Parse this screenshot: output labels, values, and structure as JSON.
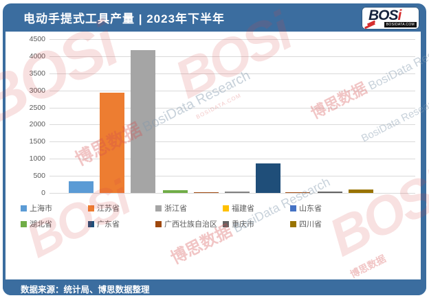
{
  "header": {
    "title": "电动手提式工具产量 | 2023年下半年"
  },
  "logo": {
    "main": "BOS",
    "accent": "i",
    "site": "BOSIDATA.COM"
  },
  "footer": {
    "source": "数据来源：统计局、博思数据整理"
  },
  "watermark": {
    "logo": "BOSi",
    "cn": "博思数据",
    "en": "BosiData Research",
    "site": "BOSIDATA.COM"
  },
  "colors": {
    "frame_blue": "#3b6d9f",
    "grid": "#d9d9d9",
    "axis_text": "#595959",
    "watermark_red": "#d9534f"
  },
  "chart_data": {
    "type": "bar",
    "title": "电动手提式工具产量 | 2023年下半年",
    "categories": [
      "上海市",
      "江苏省",
      "浙江省",
      "福建省",
      "山东省",
      "湖北省",
      "广东省",
      "广西壮族自治区",
      "重庆市",
      "四川省"
    ],
    "values": [
      350,
      2930,
      4180,
      80,
      30,
      35,
      860,
      20,
      50,
      110
    ],
    "point_colors": [
      "#5B9BD5",
      "#ED7D31",
      "#A5A5A5",
      "#70AD47",
      "#9E480E",
      "#808080",
      "#1F4E79",
      "#9E480E",
      "#636363",
      "#997300"
    ],
    "legend": [
      {
        "label": "上海市",
        "color": "#5B9BD5"
      },
      {
        "label": "江苏省",
        "color": "#ED7D31"
      },
      {
        "label": "浙江省",
        "color": "#A5A5A5"
      },
      {
        "label": "福建省",
        "color": "#FFC000"
      },
      {
        "label": "山东省",
        "color": "#4472C4"
      },
      {
        "label": "湖北省",
        "color": "#70AD47"
      },
      {
        "label": "广东省",
        "color": "#1F4E79"
      },
      {
        "label": "广西壮族自治区",
        "color": "#9E480E"
      },
      {
        "label": "重庆市",
        "color": "#636363"
      },
      {
        "label": "四川省",
        "color": "#997300"
      }
    ],
    "ylim": [
      0,
      4500
    ],
    "yticks": [
      0,
      500,
      1000,
      1500,
      2000,
      2500,
      3000,
      3500,
      4000,
      4500
    ],
    "xlabel": "",
    "ylabel": "",
    "grid": true,
    "legend_position": "bottom"
  }
}
